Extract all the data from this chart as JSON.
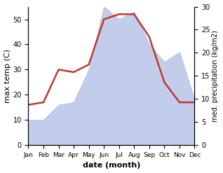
{
  "months": [
    "Jan",
    "Feb",
    "Mar",
    "Apr",
    "May",
    "Jun",
    "Jul",
    "Aug",
    "Sep",
    "Oct",
    "Nov",
    "Dec"
  ],
  "temperature": [
    16,
    17,
    30,
    29,
    32,
    50,
    52,
    52,
    43,
    25,
    17,
    17
  ],
  "precipitation_display": [
    10,
    10,
    16,
    17,
    30,
    55,
    50,
    53,
    40,
    33,
    37,
    18
  ],
  "temp_color": "#c0392b",
  "precip_fill_color": "#b8c4e8",
  "temp_ylim": [
    0,
    55
  ],
  "precip_ylim": [
    0,
    30
  ],
  "left_yticks": [
    0,
    10,
    20,
    30,
    40,
    50
  ],
  "right_yticks": [
    0,
    5,
    10,
    15,
    20,
    25,
    30
  ],
  "xlabel": "date (month)",
  "ylabel_left": "max temp (C)",
  "ylabel_right": "med. precipitation (kg/m2)",
  "bg_color": "#ffffff",
  "temp_linewidth": 1.8,
  "xlabel_fontsize": 8,
  "ylabel_fontsize": 8
}
